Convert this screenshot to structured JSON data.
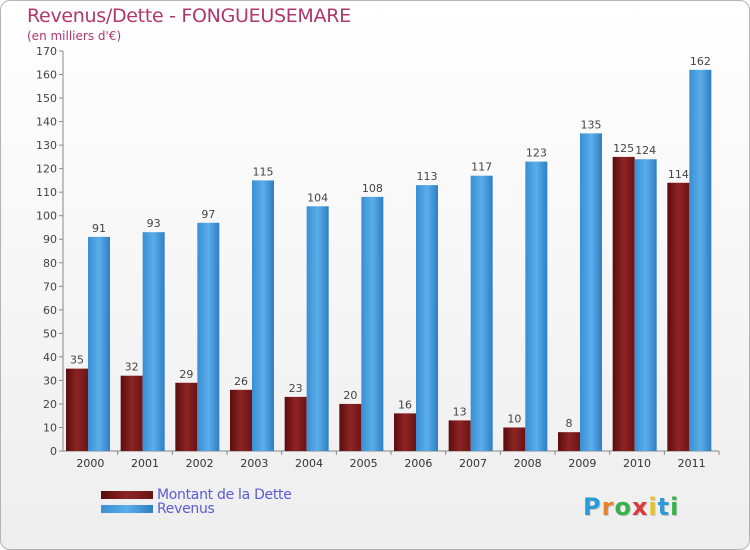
{
  "title": "Revenus/Dette - FONGUEUSEMARE",
  "subtitle": "(en milliers d'€)",
  "chart_data": {
    "type": "bar",
    "categories": [
      "2000",
      "2001",
      "2002",
      "2003",
      "2004",
      "2005",
      "2006",
      "2007",
      "2008",
      "2009",
      "2010",
      "2011"
    ],
    "series": [
      {
        "name": "Montant de la Dette",
        "color": "#8b2020",
        "values": [
          35,
          32,
          29,
          26,
          23,
          20,
          16,
          13,
          10,
          8,
          125,
          114
        ]
      },
      {
        "name": "Revenus",
        "color": "#4a9fe0",
        "values": [
          91,
          93,
          97,
          115,
          104,
          108,
          113,
          117,
          123,
          135,
          124,
          162
        ]
      }
    ],
    "yticks": [
      0,
      10,
      20,
      30,
      40,
      50,
      60,
      70,
      80,
      90,
      100,
      110,
      120,
      130,
      140,
      150,
      160,
      170
    ],
    "ylim": [
      0,
      170
    ],
    "grid": false,
    "legend_position": "bottom-left"
  },
  "legend": {
    "debt_label": "Montant de la Dette",
    "revenue_label": "Revenus"
  },
  "logo": {
    "letters": [
      "P",
      "r",
      "o",
      "x",
      "i",
      "t",
      "i"
    ],
    "colors": [
      "#2a9ad8",
      "#e8812a",
      "#3ab04a",
      "#d83a3a",
      "#e8c22a",
      "#2a9ad8",
      "#3ab04a"
    ]
  }
}
